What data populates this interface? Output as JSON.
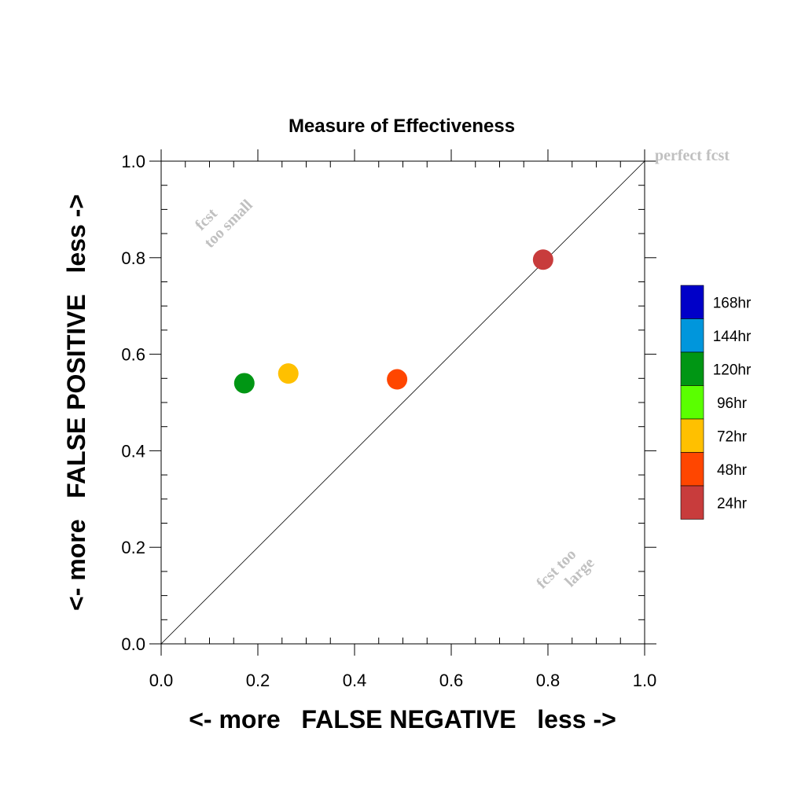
{
  "chart_data": {
    "type": "scatter",
    "title": "Measure of Effectiveness",
    "xlabel": "<- more   FALSE NEGATIVE   less ->",
    "ylabel": "<- more   FALSE POSITIVE   less ->",
    "xlim": [
      0.0,
      1.0
    ],
    "ylim": [
      0.0,
      1.0
    ],
    "xticks": [
      "0.0",
      "0.2",
      "0.4",
      "0.6",
      "0.8",
      "1.0"
    ],
    "yticks": [
      "0.0",
      "0.2",
      "0.4",
      "0.6",
      "0.8",
      "1.0"
    ],
    "grid": false,
    "diagonal_line": true,
    "annotations": [
      {
        "id": "perfect",
        "text": "perfect fcst",
        "position": "top-right"
      },
      {
        "id": "small",
        "lines": [
          "fcst",
          "too small"
        ],
        "position": "upper-left"
      },
      {
        "id": "large",
        "lines": [
          "fcst too",
          "large"
        ],
        "position": "lower-right"
      }
    ],
    "legend": {
      "placement": "right",
      "items": [
        {
          "label": "168hr",
          "color": "#0000c8"
        },
        {
          "label": "144hr",
          "color": "#0096dc"
        },
        {
          "label": "120hr",
          "color": "#009614"
        },
        {
          "label": "96hr",
          "color": "#5aff00"
        },
        {
          "label": "72hr",
          "color": "#ffc000"
        },
        {
          "label": "48hr",
          "color": "#ff4600"
        },
        {
          "label": "24hr",
          "color": "#c83c3c"
        }
      ]
    },
    "points": [
      {
        "series": "120hr",
        "x": 0.172,
        "y": 0.54,
        "color": "#009614"
      },
      {
        "series": "72hr",
        "x": 0.263,
        "y": 0.56,
        "color": "#ffc000"
      },
      {
        "series": "48hr",
        "x": 0.488,
        "y": 0.548,
        "color": "#ff4600"
      },
      {
        "series": "24hr",
        "x": 0.79,
        "y": 0.796,
        "color": "#c83c3c"
      }
    ]
  }
}
